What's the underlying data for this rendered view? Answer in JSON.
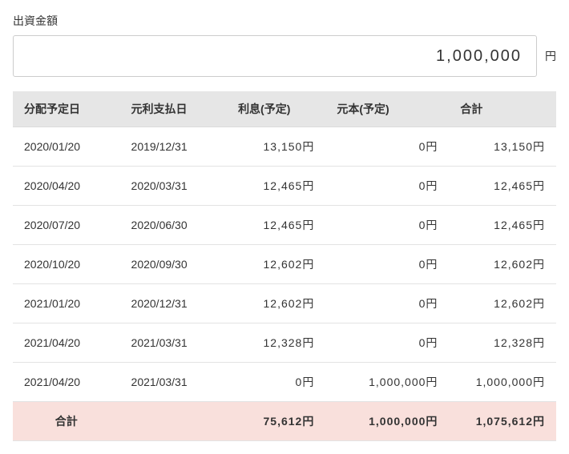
{
  "investment": {
    "label": "出資金額",
    "value": "1,000,000",
    "unit": "円"
  },
  "table": {
    "headers": {
      "distribution_date": "分配予定日",
      "payment_date": "元利支払日",
      "interest": "利息(予定)",
      "principal": "元本(予定)",
      "total": "合計"
    },
    "rows": [
      {
        "distribution_date": "2020/01/20",
        "payment_date": "2019/12/31",
        "interest": "13,150円",
        "principal": "0円",
        "total": "13,150円"
      },
      {
        "distribution_date": "2020/04/20",
        "payment_date": "2020/03/31",
        "interest": "12,465円",
        "principal": "0円",
        "total": "12,465円"
      },
      {
        "distribution_date": "2020/07/20",
        "payment_date": "2020/06/30",
        "interest": "12,465円",
        "principal": "0円",
        "total": "12,465円"
      },
      {
        "distribution_date": "2020/10/20",
        "payment_date": "2020/09/30",
        "interest": "12,602円",
        "principal": "0円",
        "total": "12,602円"
      },
      {
        "distribution_date": "2021/01/20",
        "payment_date": "2020/12/31",
        "interest": "12,602円",
        "principal": "0円",
        "total": "12,602円"
      },
      {
        "distribution_date": "2021/04/20",
        "payment_date": "2021/03/31",
        "interest": "12,328円",
        "principal": "0円",
        "total": "12,328円"
      },
      {
        "distribution_date": "2021/04/20",
        "payment_date": "2021/03/31",
        "interest": "0円",
        "principal": "1,000,000円",
        "total": "1,000,000円"
      }
    ],
    "total_row": {
      "label": "合計",
      "payment_date": "",
      "interest": "75,612円",
      "principal": "1,000,000円",
      "total": "1,075,612円"
    }
  },
  "colors": {
    "header_bg": "#e6e6e6",
    "row_border": "#e3e3e3",
    "total_bg": "#f9e0dc",
    "text": "#333333",
    "input_border": "#cccccc"
  }
}
